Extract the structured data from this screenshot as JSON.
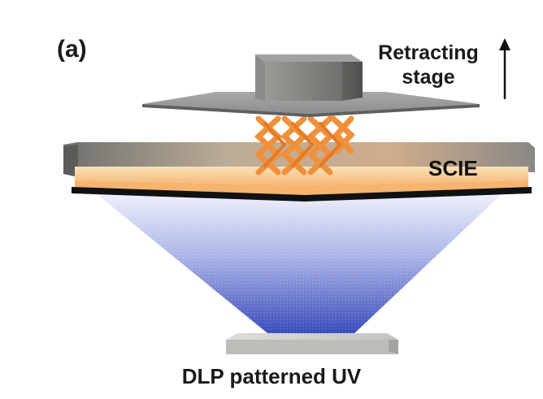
{
  "figure": {
    "panel_label": "(a)",
    "stage_label_lines": [
      "Retracting",
      "stage"
    ],
    "material_label": "SCIE",
    "source_label": "DLP patterned UV"
  },
  "colors": {
    "stage_top": "#8a8c8a",
    "stage_block": "#7c7e7b",
    "lattice": "#f0903a",
    "resin_layer": "#f8c890",
    "vat_edge": "#6d6e6c",
    "vat_base": "#111111",
    "uv_light": "#3f4fbf",
    "projector": "#cfcfcb"
  }
}
